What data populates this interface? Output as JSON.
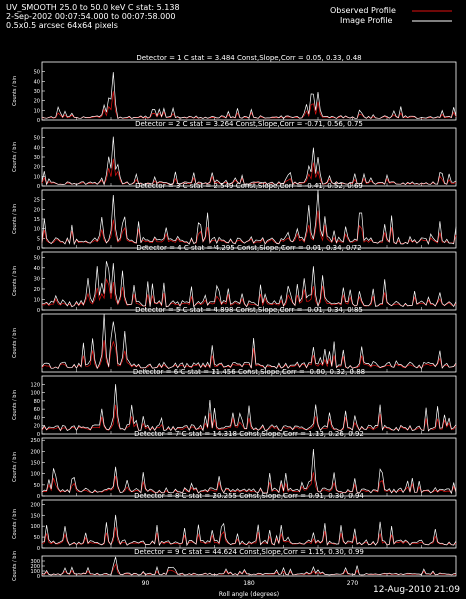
{
  "header": {
    "line1": "UV_SMOOTH 25.0 to 50.0 keV C stat: 5.138",
    "line2": "2-Sep-2002 00:07:54.000 to 00:07:58.000",
    "line3": "0.5x0.5 arcsec 64x64 pixels"
  },
  "legend": {
    "observed_label": "Observed Profile",
    "observed_color": "#e01010",
    "image_label": "Image Profile",
    "image_color": "#ffffff"
  },
  "footer": {
    "timestamp": "12-Aug-2010 21:09"
  },
  "colors": {
    "background": "#000000",
    "axes": "#ffffff",
    "observed": "#e01010",
    "image": "#ffffff"
  },
  "chart_data": [
    {
      "type": "line",
      "title": "Detector = 1  C stat = 3.484  Const,Slope,Corr = 0.05, 0.33, 0.48",
      "ylabel": "Counts / bin",
      "ylim": [
        0,
        60
      ],
      "yticks": [
        0,
        10,
        20,
        30,
        40,
        50
      ],
      "xlim": [
        0,
        360
      ],
      "peaks": [
        {
          "x": 62,
          "y": 48
        },
        {
          "x": 58,
          "y": 22
        },
        {
          "x": 54,
          "y": 14
        },
        {
          "x": 235,
          "y": 38
        },
        {
          "x": 240,
          "y": 28
        },
        {
          "x": 230,
          "y": 16
        }
      ],
      "baseline": 3
    },
    {
      "type": "line",
      "title": "Detector = 2  C stat = 3.264  Const,Slope,Corr = -0.71, 0.56, 0.75",
      "ylabel": "Counts / bin",
      "ylim": [
        0,
        60
      ],
      "yticks": [
        0,
        10,
        20,
        30,
        40,
        50
      ],
      "xlim": [
        0,
        360
      ],
      "peaks": [
        {
          "x": 62,
          "y": 50
        },
        {
          "x": 58,
          "y": 30
        },
        {
          "x": 66,
          "y": 22
        },
        {
          "x": 236,
          "y": 38
        },
        {
          "x": 240,
          "y": 30
        },
        {
          "x": 232,
          "y": 20
        }
      ],
      "baseline": 3
    },
    {
      "type": "line",
      "title": "Detector = 3  C stat = 2.549  Const,Slope,Corr = -0.41, 0.52, 0.69",
      "ylabel": "Counts / bin",
      "ylim": [
        0,
        30
      ],
      "yticks": [
        0,
        5,
        10,
        15,
        20,
        25
      ],
      "xlim": [
        0,
        360
      ],
      "peaks": [
        {
          "x": 62,
          "y": 26
        },
        {
          "x": 52,
          "y": 14
        },
        {
          "x": 70,
          "y": 12
        },
        {
          "x": 232,
          "y": 22
        },
        {
          "x": 240,
          "y": 24
        },
        {
          "x": 246,
          "y": 16
        }
      ],
      "baseline": 4
    },
    {
      "type": "line",
      "title": "Detector = 4  C stat = 4.295  Const,Slope,Corr = 0.01, 0.34, 0.72",
      "ylabel": "Counts / bin",
      "ylim": [
        0,
        55
      ],
      "yticks": [
        0,
        10,
        20,
        30,
        40,
        50
      ],
      "xlim": [
        0,
        360
      ],
      "peaks": [
        {
          "x": 40,
          "y": 30
        },
        {
          "x": 48,
          "y": 40
        },
        {
          "x": 56,
          "y": 46
        },
        {
          "x": 62,
          "y": 44
        },
        {
          "x": 70,
          "y": 36
        },
        {
          "x": 228,
          "y": 30
        },
        {
          "x": 236,
          "y": 40
        },
        {
          "x": 244,
          "y": 32
        }
      ],
      "baseline": 6
    },
    {
      "type": "line",
      "title": "Detector = 5  C stat = 4.898  Const,Slope,Corr = -0.01, 0.34, 0.85",
      "ylabel": "Counts / bin",
      "ylim": [
        0,
        70
      ],
      "yticks": [],
      "xlim": [
        0,
        360
      ],
      "peaks": [
        {
          "x": 44,
          "y": 40
        },
        {
          "x": 54,
          "y": 56
        },
        {
          "x": 62,
          "y": 60
        },
        {
          "x": 72,
          "y": 48
        },
        {
          "x": 236,
          "y": 30
        },
        {
          "x": 246,
          "y": 26
        }
      ],
      "baseline": 8
    },
    {
      "type": "line",
      "title": "Detector = 6  C stat = 11.456  Const,Slope,Corr = -0.00, 0.32, 0.88",
      "ylabel": "Counts / bin",
      "ylim": [
        0,
        140
      ],
      "yticks": [
        0,
        20,
        40,
        60,
        80,
        100,
        120
      ],
      "xlim": [
        0,
        360
      ],
      "peaks": [
        {
          "x": 64,
          "y": 120
        },
        {
          "x": 52,
          "y": 60
        },
        {
          "x": 78,
          "y": 70
        },
        {
          "x": 238,
          "y": 70
        },
        {
          "x": 250,
          "y": 50
        }
      ],
      "baseline": 15
    },
    {
      "type": "line",
      "title": "Detector = 7  C stat = 14.318  Const,Slope,Corr = 1.13, 0.26, 0.92",
      "ylabel": "Counts / bin",
      "ylim": [
        0,
        260
      ],
      "yticks": [
        0,
        50,
        100,
        150,
        200,
        250
      ],
      "xlim": [
        0,
        360
      ],
      "peaks": [
        {
          "x": 64,
          "y": 130
        },
        {
          "x": 74,
          "y": 70
        },
        {
          "x": 236,
          "y": 210
        },
        {
          "x": 226,
          "y": 60
        }
      ],
      "baseline": 25
    },
    {
      "type": "line",
      "title": "Detector = 8  C stat = 20.255  Const,Slope,Corr = 0.91, 0.30, 0.94",
      "ylabel": "Counts / bin",
      "ylim": [
        0,
        220
      ],
      "yticks": [
        0,
        50,
        100,
        150,
        200
      ],
      "xlim": [
        0,
        360
      ],
      "peaks": [
        {
          "x": 20,
          "y": 100
        },
        {
          "x": 64,
          "y": 150
        },
        {
          "x": 160,
          "y": 40
        },
        {
          "x": 236,
          "y": 70
        }
      ],
      "baseline": 25
    },
    {
      "type": "line",
      "title": "Detector = 9  C stat = 44.624  Const,Slope,Corr = 1.15, 0.30, 0.99",
      "ylabel": "Counts / bin",
      "ylim": [
        0,
        400
      ],
      "yticks": [
        0,
        100,
        200,
        300
      ],
      "xlim": [
        0,
        360
      ],
      "xticks": [
        90,
        180,
        270
      ],
      "xlabel": "Roll angle (degrees)",
      "peaks": [
        {
          "x": 64,
          "y": 380
        },
        {
          "x": 20,
          "y": 160
        },
        {
          "x": 160,
          "y": 140
        },
        {
          "x": 236,
          "y": 180
        }
      ],
      "baseline": 40
    }
  ]
}
